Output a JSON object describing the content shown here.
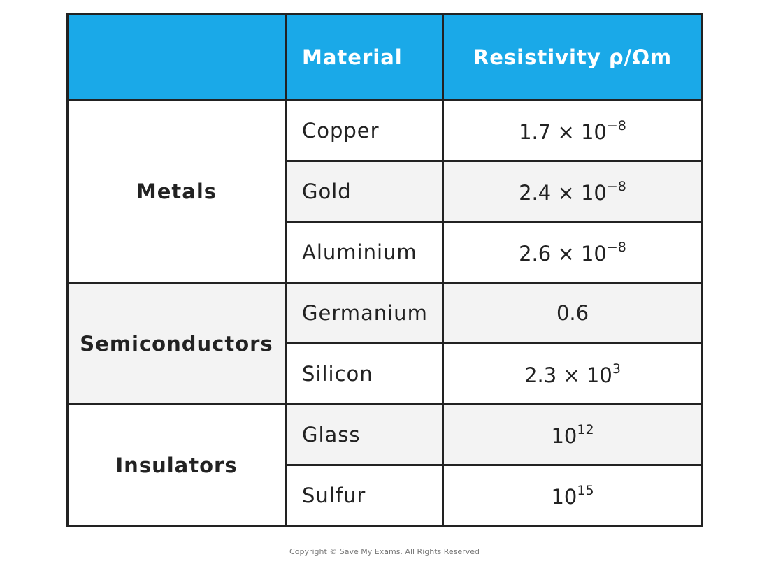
{
  "table": {
    "columns": [
      "Material",
      "Resistivity ρ/Ωm"
    ],
    "groups": [
      {
        "name": "Metals",
        "rows": [
          {
            "material": "Copper",
            "resistivity": {
              "base": "1.7 × 10",
              "exponent": "−8"
            }
          },
          {
            "material": "Gold",
            "resistivity": {
              "base": "2.4 × 10",
              "exponent": "−8"
            }
          },
          {
            "material": "Aluminium",
            "resistivity": {
              "base": "2.6 × 10",
              "exponent": "−8"
            }
          }
        ]
      },
      {
        "name": "Semiconductors",
        "rows": [
          {
            "material": "Germanium",
            "resistivity": {
              "base": "0.6"
            }
          },
          {
            "material": "Silicon",
            "resistivity": {
              "base": "2.3 × 10",
              "exponent": "3"
            }
          }
        ]
      },
      {
        "name": "Insulators",
        "rows": [
          {
            "material": "Glass",
            "resistivity": {
              "base": "10",
              "exponent": "12"
            }
          },
          {
            "material": "Sulfur",
            "resistivity": {
              "base": "10",
              "exponent": "15"
            }
          }
        ]
      }
    ]
  },
  "footer": "Copyright © Save My Exams. All Rights Reserved"
}
